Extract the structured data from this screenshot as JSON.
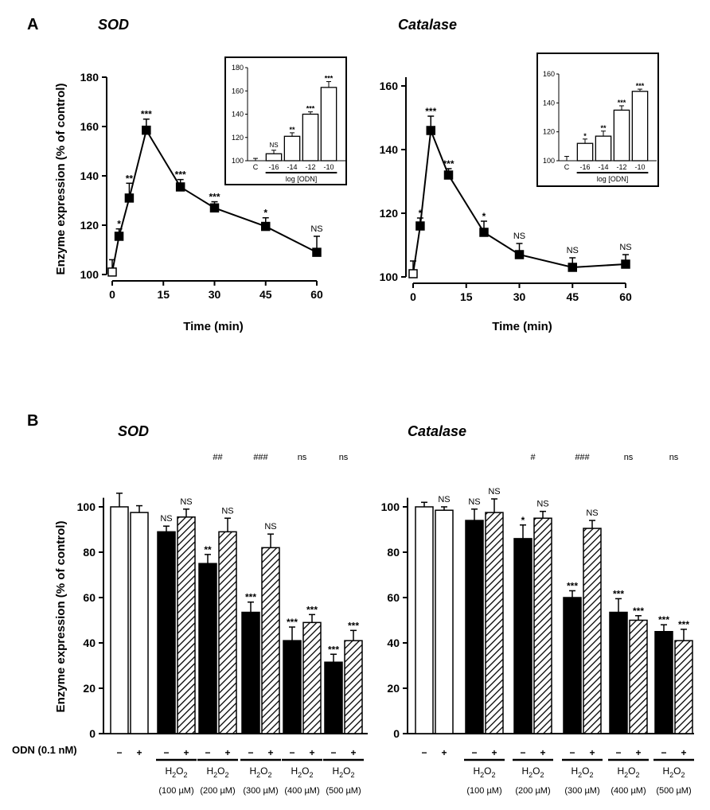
{
  "figure": {
    "panel_a_label": "A",
    "panel_b_label": "B",
    "y_axis_label": "Enzyme expression (% of control)",
    "x_axis_label": "Time (min)",
    "inset_x_label": "log [ODN]",
    "odn_label": "ODN (0.1 nM)",
    "minus": "−",
    "plus": "+",
    "h2o2": "H",
    "h2o2_sub1": "2",
    "h2o2_o": "O",
    "h2o2_sub2": "2"
  },
  "chart_data": [
    {
      "id": "A-SOD",
      "type": "line",
      "title": "SOD",
      "xlabel": "Time (min)",
      "ylabel": "Enzyme expression (% of control)",
      "xlim": [
        0,
        60
      ],
      "ylim": [
        100,
        180
      ],
      "xticks": [
        0,
        15,
        30,
        45,
        60
      ],
      "yticks": [
        100,
        120,
        140,
        160,
        180
      ],
      "x": [
        0,
        2,
        5,
        10,
        20,
        30,
        45,
        60
      ],
      "y": [
        101,
        115.5,
        131,
        158.5,
        135.5,
        127,
        119.5,
        109
      ],
      "err": [
        5,
        3,
        6,
        4.5,
        3,
        2.5,
        3.5,
        6.5
      ],
      "sig": [
        "",
        "*",
        "**",
        "***",
        "***",
        "***",
        "*",
        "NS"
      ],
      "open_first": true,
      "inset": {
        "type": "bar",
        "categories": [
          "C",
          "-16",
          "-14",
          "-12",
          "-10"
        ],
        "values": [
          100,
          106,
          121,
          140,
          163
        ],
        "err": [
          2,
          3,
          3,
          2,
          5
        ],
        "sig": [
          "",
          "NS",
          "**",
          "***",
          "***"
        ],
        "ylim": [
          100,
          180
        ],
        "yticks": [
          100,
          120,
          140,
          160,
          180
        ],
        "xlabel": "log [ODN]"
      }
    },
    {
      "id": "A-Catalase",
      "type": "line",
      "title": "Catalase",
      "xlabel": "Time (min)",
      "ylabel": "",
      "xlim": [
        0,
        60
      ],
      "ylim": [
        100,
        160
      ],
      "xticks": [
        0,
        15,
        30,
        45,
        60
      ],
      "yticks": [
        100,
        120,
        140,
        160
      ],
      "x": [
        0,
        2,
        5,
        10,
        20,
        30,
        45,
        60
      ],
      "y": [
        101,
        116,
        146,
        132,
        114,
        107,
        103,
        104
      ],
      "err": [
        4,
        2.5,
        4.5,
        2,
        3.5,
        3.5,
        3,
        3
      ],
      "sig": [
        "",
        "*",
        "***",
        "***",
        "*",
        "NS",
        "NS",
        "NS"
      ],
      "open_first": true,
      "inset": {
        "type": "bar",
        "categories": [
          "C",
          "-16",
          "-14",
          "-12",
          "-10"
        ],
        "values": [
          100,
          112,
          117,
          135,
          148
        ],
        "err": [
          3,
          3,
          3.5,
          3,
          1.5
        ],
        "sig": [
          "",
          "*",
          "**",
          "***",
          "***"
        ],
        "ylim": [
          100,
          160
        ],
        "yticks": [
          100,
          120,
          140,
          160
        ],
        "xlabel": "log [ODN]"
      }
    },
    {
      "id": "B-SOD",
      "type": "bar",
      "title": "SOD",
      "ylabel": "Enzyme expression (% of control)",
      "ylim": [
        0,
        100
      ],
      "yticks": [
        0,
        20,
        40,
        60,
        80,
        100
      ],
      "groups": [
        {
          "label": "",
          "conc": "",
          "bars": [
            {
              "odn": "−",
              "fill": "open",
              "value": 100,
              "err": 6,
              "sig": ""
            },
            {
              "odn": "+",
              "fill": "open",
              "value": 97.5,
              "err": 3,
              "sig": ""
            }
          ]
        },
        {
          "label": "H2O2",
          "conc": "(100 µM)",
          "bars": [
            {
              "odn": "−",
              "fill": "solid",
              "value": 89,
              "err": 2.5,
              "sig": "NS"
            },
            {
              "odn": "+",
              "fill": "hatched",
              "value": 95.5,
              "err": 3.5,
              "sig": "NS"
            }
          ]
        },
        {
          "label": "H2O2",
          "conc": "(200 µM)",
          "bracket": "##",
          "bars": [
            {
              "odn": "−",
              "fill": "solid",
              "value": 75,
              "err": 4,
              "sig": "**"
            },
            {
              "odn": "+",
              "fill": "hatched",
              "value": 89,
              "err": 6,
              "sig": "NS"
            }
          ]
        },
        {
          "label": "H2O2",
          "conc": "(300 µM)",
          "bracket": "###",
          "bars": [
            {
              "odn": "−",
              "fill": "solid",
              "value": 53.5,
              "err": 4.5,
              "sig": "***"
            },
            {
              "odn": "+",
              "fill": "hatched",
              "value": 82,
              "err": 6,
              "sig": "NS"
            }
          ]
        },
        {
          "label": "H2O2",
          "conc": "(400 µM)",
          "bracket": "ns",
          "bars": [
            {
              "odn": "−",
              "fill": "solid",
              "value": 41,
              "err": 6,
              "sig": "***"
            },
            {
              "odn": "+",
              "fill": "hatched",
              "value": 49,
              "err": 3.5,
              "sig": "***"
            }
          ]
        },
        {
          "label": "H2O2",
          "conc": "(500 µM)",
          "bracket": "ns",
          "bars": [
            {
              "odn": "−",
              "fill": "solid",
              "value": 31.5,
              "err": 3.5,
              "sig": "***"
            },
            {
              "odn": "+",
              "fill": "hatched",
              "value": 41,
              "err": 4.5,
              "sig": "***"
            }
          ]
        }
      ]
    },
    {
      "id": "B-Catalase",
      "type": "bar",
      "title": "Catalase",
      "ylabel": "",
      "ylim": [
        0,
        100
      ],
      "yticks": [
        0,
        20,
        40,
        60,
        80,
        100
      ],
      "groups": [
        {
          "label": "",
          "conc": "",
          "bars": [
            {
              "odn": "−",
              "fill": "open",
              "value": 100,
              "err": 2,
              "sig": ""
            },
            {
              "odn": "+",
              "fill": "open",
              "value": 98.5,
              "err": 1.5,
              "sig": "NS"
            }
          ]
        },
        {
          "label": "H2O2",
          "conc": "(100 µM)",
          "bars": [
            {
              "odn": "−",
              "fill": "solid",
              "value": 94,
              "err": 5,
              "sig": "NS"
            },
            {
              "odn": "+",
              "fill": "hatched",
              "value": 97.5,
              "err": 6,
              "sig": "NS"
            }
          ]
        },
        {
          "label": "H2O2",
          "conc": "(200 µM)",
          "bracket": "#",
          "bars": [
            {
              "odn": "−",
              "fill": "solid",
              "value": 86,
              "err": 6,
              "sig": "*"
            },
            {
              "odn": "+",
              "fill": "hatched",
              "value": 95,
              "err": 3,
              "sig": "NS"
            }
          ]
        },
        {
          "label": "H2O2",
          "conc": "(300 µM)",
          "bracket": "###",
          "bars": [
            {
              "odn": "−",
              "fill": "solid",
              "value": 60,
              "err": 3,
              "sig": "***"
            },
            {
              "odn": "+",
              "fill": "hatched",
              "value": 90.5,
              "err": 3.5,
              "sig": "NS"
            }
          ]
        },
        {
          "label": "H2O2",
          "conc": "(400 µM)",
          "bracket": "ns",
          "bars": [
            {
              "odn": "−",
              "fill": "solid",
              "value": 53.5,
              "err": 6,
              "sig": "***"
            },
            {
              "odn": "+",
              "fill": "hatched",
              "value": 50,
              "err": 2,
              "sig": "***"
            }
          ]
        },
        {
          "label": "H2O2",
          "conc": "(500 µM)",
          "bracket": "ns",
          "bars": [
            {
              "odn": "−",
              "fill": "solid",
              "value": 45,
              "err": 3,
              "sig": "***"
            },
            {
              "odn": "+",
              "fill": "hatched",
              "value": 41,
              "err": 5,
              "sig": "***"
            }
          ]
        }
      ]
    }
  ]
}
